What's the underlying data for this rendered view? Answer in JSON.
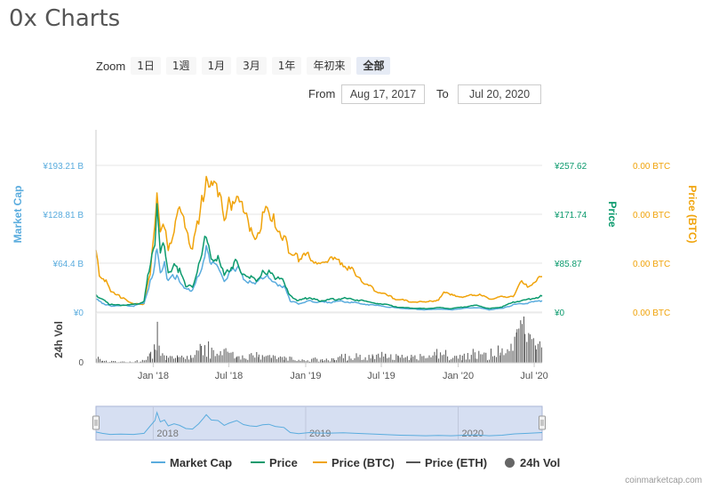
{
  "title": "0x Charts",
  "zoom": {
    "label": "Zoom",
    "buttons": [
      "1日",
      "1週",
      "1月",
      "3月",
      "1年",
      "年初来",
      "全部"
    ],
    "active": "全部"
  },
  "range": {
    "from_label": "From",
    "from_value": "Aug 17, 2017",
    "to_label": "To",
    "to_value": "Jul 20, 2020"
  },
  "legend": [
    {
      "name": "Market Cap",
      "color": "#5aacde",
      "kind": "line"
    },
    {
      "name": "Price",
      "color": "#0b9a6d",
      "kind": "line"
    },
    {
      "name": "Price (BTC)",
      "color": "#f0a30a",
      "kind": "line"
    },
    {
      "name": "Price (ETH)",
      "color": "#555555",
      "kind": "line"
    },
    {
      "name": "24h Vol",
      "color": "#666666",
      "kind": "dot"
    }
  ],
  "credits": "coinmarketcap.com",
  "chart_data": {
    "type": "line",
    "x_start": "2017-08-17",
    "x_end": "2020-07-20",
    "x_ticks": [
      {
        "date": "2018-01-01",
        "label": "Jan '18"
      },
      {
        "date": "2018-07-01",
        "label": "Jul '18"
      },
      {
        "date": "2019-01-01",
        "label": "Jan '19"
      },
      {
        "date": "2019-07-01",
        "label": "Jul '19"
      },
      {
        "date": "2020-01-01",
        "label": "Jan '20"
      },
      {
        "date": "2020-07-01",
        "label": "Jul '20"
      }
    ],
    "navigator_ticks": [
      {
        "date": "2018-01-01",
        "label": "2018"
      },
      {
        "date": "2019-01-01",
        "label": "2019"
      },
      {
        "date": "2020-01-01",
        "label": "2020"
      }
    ],
    "y_left": {
      "label": "Market Cap",
      "ticks": [
        "¥0",
        "¥64.4 B",
        "¥128.81 B",
        "¥193.21 B"
      ],
      "max": 193.21
    },
    "y_price": {
      "label": "Price",
      "ticks": [
        "¥0",
        "¥85.87",
        "¥171.74",
        "¥257.62"
      ],
      "max": 257.62
    },
    "y_btc": {
      "label": "Price (BTC)",
      "ticks": [
        "0.00 BTC",
        "0.00 BTC",
        "0.00 BTC",
        "0.00 BTC"
      ]
    },
    "y_vol": {
      "label": "24h Vol",
      "ticks": [
        "0"
      ]
    },
    "series": [
      {
        "name": "Market Cap",
        "color": "#5aacde",
        "points": [
          [
            "2017-08-17",
            17
          ],
          [
            "2017-09-01",
            12
          ],
          [
            "2017-09-20",
            8
          ],
          [
            "2017-10-15",
            9
          ],
          [
            "2017-11-15",
            8
          ],
          [
            "2017-12-10",
            12
          ],
          [
            "2017-12-25",
            40
          ],
          [
            "2018-01-05",
            60
          ],
          [
            "2018-01-10",
            90
          ],
          [
            "2018-01-18",
            55
          ],
          [
            "2018-01-28",
            62
          ],
          [
            "2018-02-06",
            40
          ],
          [
            "2018-02-20",
            48
          ],
          [
            "2018-03-05",
            42
          ],
          [
            "2018-03-20",
            30
          ],
          [
            "2018-04-05",
            28
          ],
          [
            "2018-04-20",
            48
          ],
          [
            "2018-05-01",
            68
          ],
          [
            "2018-05-08",
            82
          ],
          [
            "2018-05-20",
            62
          ],
          [
            "2018-06-05",
            60
          ],
          [
            "2018-06-20",
            42
          ],
          [
            "2018-07-01",
            50
          ],
          [
            "2018-07-20",
            60
          ],
          [
            "2018-08-05",
            45
          ],
          [
            "2018-08-20",
            40
          ],
          [
            "2018-09-05",
            38
          ],
          [
            "2018-09-20",
            44
          ],
          [
            "2018-10-05",
            46
          ],
          [
            "2018-10-20",
            38
          ],
          [
            "2018-11-10",
            34
          ],
          [
            "2018-11-25",
            15
          ],
          [
            "2018-12-15",
            11
          ],
          [
            "2019-01-10",
            15
          ],
          [
            "2019-02-01",
            13
          ],
          [
            "2019-03-01",
            13
          ],
          [
            "2019-04-01",
            14
          ],
          [
            "2019-05-01",
            12
          ],
          [
            "2019-06-15",
            9
          ],
          [
            "2019-07-15",
            7
          ],
          [
            "2019-08-15",
            5
          ],
          [
            "2019-09-15",
            4
          ],
          [
            "2019-10-15",
            3
          ],
          [
            "2019-11-15",
            4
          ],
          [
            "2019-12-15",
            3
          ],
          [
            "2020-01-15",
            5
          ],
          [
            "2020-02-15",
            6
          ],
          [
            "2020-03-15",
            3
          ],
          [
            "2020-04-15",
            5
          ],
          [
            "2020-05-15",
            10
          ],
          [
            "2020-06-15",
            12
          ],
          [
            "2020-07-20",
            15
          ]
        ]
      },
      {
        "name": "Price",
        "color": "#0b9a6d",
        "points": [
          [
            "2017-08-17",
            30
          ],
          [
            "2017-09-01",
            22
          ],
          [
            "2017-09-20",
            13
          ],
          [
            "2017-10-15",
            12
          ],
          [
            "2017-11-15",
            13
          ],
          [
            "2017-12-10",
            18
          ],
          [
            "2017-12-22",
            75
          ],
          [
            "2018-01-05",
            120
          ],
          [
            "2018-01-10",
            185
          ],
          [
            "2018-01-18",
            100
          ],
          [
            "2018-01-28",
            120
          ],
          [
            "2018-02-06",
            70
          ],
          [
            "2018-02-20",
            82
          ],
          [
            "2018-03-05",
            72
          ],
          [
            "2018-03-20",
            48
          ],
          [
            "2018-04-05",
            45
          ],
          [
            "2018-04-20",
            80
          ],
          [
            "2018-05-01",
            110
          ],
          [
            "2018-05-08",
            142
          ],
          [
            "2018-05-20",
            100
          ],
          [
            "2018-06-05",
            92
          ],
          [
            "2018-06-20",
            66
          ],
          [
            "2018-07-01",
            75
          ],
          [
            "2018-07-20",
            88
          ],
          [
            "2018-08-05",
            65
          ],
          [
            "2018-08-20",
            60
          ],
          [
            "2018-09-05",
            56
          ],
          [
            "2018-09-20",
            68
          ],
          [
            "2018-10-05",
            70
          ],
          [
            "2018-10-20",
            60
          ],
          [
            "2018-11-10",
            55
          ],
          [
            "2018-11-25",
            28
          ],
          [
            "2018-12-15",
            20
          ],
          [
            "2019-01-10",
            26
          ],
          [
            "2019-02-01",
            20
          ],
          [
            "2019-03-01",
            22
          ],
          [
            "2019-04-01",
            24
          ],
          [
            "2019-05-01",
            22
          ],
          [
            "2019-06-15",
            16
          ],
          [
            "2019-07-15",
            13
          ],
          [
            "2019-08-15",
            8
          ],
          [
            "2019-09-15",
            7
          ],
          [
            "2019-10-15",
            6
          ],
          [
            "2019-11-15",
            8
          ],
          [
            "2019-12-15",
            6
          ],
          [
            "2020-01-15",
            9
          ],
          [
            "2020-02-15",
            12
          ],
          [
            "2020-03-15",
            6
          ],
          [
            "2020-04-15",
            9
          ],
          [
            "2020-05-15",
            18
          ],
          [
            "2020-06-15",
            22
          ],
          [
            "2020-07-20",
            28
          ]
        ]
      },
      {
        "name": "Price (BTC)",
        "color": "#f0a30a",
        "points": [
          [
            "2017-08-17",
            92
          ],
          [
            "2017-08-25",
            55
          ],
          [
            "2017-09-10",
            45
          ],
          [
            "2017-09-25",
            28
          ],
          [
            "2017-10-15",
            22
          ],
          [
            "2017-11-01",
            16
          ],
          [
            "2017-11-20",
            12
          ],
          [
            "2017-12-10",
            12
          ],
          [
            "2017-12-25",
            60
          ],
          [
            "2018-01-05",
            140
          ],
          [
            "2018-01-10",
            172
          ],
          [
            "2018-01-18",
            110
          ],
          [
            "2018-01-28",
            130
          ],
          [
            "2018-02-06",
            98
          ],
          [
            "2018-02-20",
            115
          ],
          [
            "2018-03-05",
            150
          ],
          [
            "2018-03-15",
            140
          ],
          [
            "2018-03-28",
            108
          ],
          [
            "2018-04-05",
            92
          ],
          [
            "2018-04-20",
            138
          ],
          [
            "2018-05-01",
            172
          ],
          [
            "2018-05-08",
            198
          ],
          [
            "2018-05-20",
            180
          ],
          [
            "2018-06-05",
            178
          ],
          [
            "2018-06-20",
            138
          ],
          [
            "2018-07-01",
            158
          ],
          [
            "2018-07-20",
            168
          ],
          [
            "2018-08-05",
            150
          ],
          [
            "2018-08-20",
            128
          ],
          [
            "2018-09-05",
            108
          ],
          [
            "2018-09-20",
            140
          ],
          [
            "2018-10-05",
            150
          ],
          [
            "2018-10-20",
            132
          ],
          [
            "2018-11-10",
            110
          ],
          [
            "2018-11-25",
            85
          ],
          [
            "2018-12-15",
            78
          ],
          [
            "2019-01-10",
            82
          ],
          [
            "2019-02-01",
            70
          ],
          [
            "2019-03-01",
            78
          ],
          [
            "2019-04-01",
            72
          ],
          [
            "2019-05-01",
            56
          ],
          [
            "2019-06-01",
            38
          ],
          [
            "2019-07-01",
            28
          ],
          [
            "2019-08-01",
            20
          ],
          [
            "2019-09-01",
            16
          ],
          [
            "2019-10-15",
            14
          ],
          [
            "2019-11-15",
            18
          ],
          [
            "2019-12-01",
            30
          ],
          [
            "2019-12-20",
            24
          ],
          [
            "2020-01-15",
            22
          ],
          [
            "2020-02-15",
            26
          ],
          [
            "2020-03-15",
            20
          ],
          [
            "2020-04-15",
            22
          ],
          [
            "2020-05-15",
            24
          ],
          [
            "2020-06-01",
            48
          ],
          [
            "2020-06-15",
            38
          ],
          [
            "2020-07-20",
            52
          ]
        ]
      }
    ],
    "volume": [
      [
        "2017-08-17",
        5
      ],
      [
        "2017-09-01",
        2
      ],
      [
        "2017-10-01",
        1
      ],
      [
        "2017-11-01",
        1
      ],
      [
        "2017-12-01",
        2
      ],
      [
        "2017-12-25",
        8
      ],
      [
        "2018-01-05",
        14
      ],
      [
        "2018-01-10",
        36
      ],
      [
        "2018-01-18",
        10
      ],
      [
        "2018-02-01",
        6
      ],
      [
        "2018-03-01",
        5
      ],
      [
        "2018-04-01",
        6
      ],
      [
        "2018-04-25",
        14
      ],
      [
        "2018-05-08",
        20
      ],
      [
        "2018-05-20",
        10
      ],
      [
        "2018-06-10",
        8
      ],
      [
        "2018-07-01",
        12
      ],
      [
        "2018-07-20",
        8
      ],
      [
        "2018-08-10",
        6
      ],
      [
        "2018-09-10",
        7
      ],
      [
        "2018-10-10",
        5
      ],
      [
        "2018-11-10",
        5
      ],
      [
        "2018-12-10",
        3
      ],
      [
        "2019-01-10",
        3
      ],
      [
        "2019-02-10",
        4
      ],
      [
        "2019-03-10",
        5
      ],
      [
        "2019-04-10",
        6
      ],
      [
        "2019-05-10",
        7
      ],
      [
        "2019-06-10",
        6
      ],
      [
        "2019-07-10",
        8
      ],
      [
        "2019-08-10",
        5
      ],
      [
        "2019-09-10",
        7
      ],
      [
        "2019-10-10",
        6
      ],
      [
        "2019-11-10",
        9
      ],
      [
        "2019-12-10",
        8
      ],
      [
        "2020-01-10",
        7
      ],
      [
        "2020-02-10",
        10
      ],
      [
        "2020-03-10",
        8
      ],
      [
        "2020-04-10",
        12
      ],
      [
        "2020-05-10",
        14
      ],
      [
        "2020-05-20",
        22
      ],
      [
        "2020-06-01",
        48
      ],
      [
        "2020-06-08",
        30
      ],
      [
        "2020-06-20",
        20
      ],
      [
        "2020-07-05",
        16
      ],
      [
        "2020-07-20",
        12
      ]
    ],
    "vol_max": 50
  }
}
